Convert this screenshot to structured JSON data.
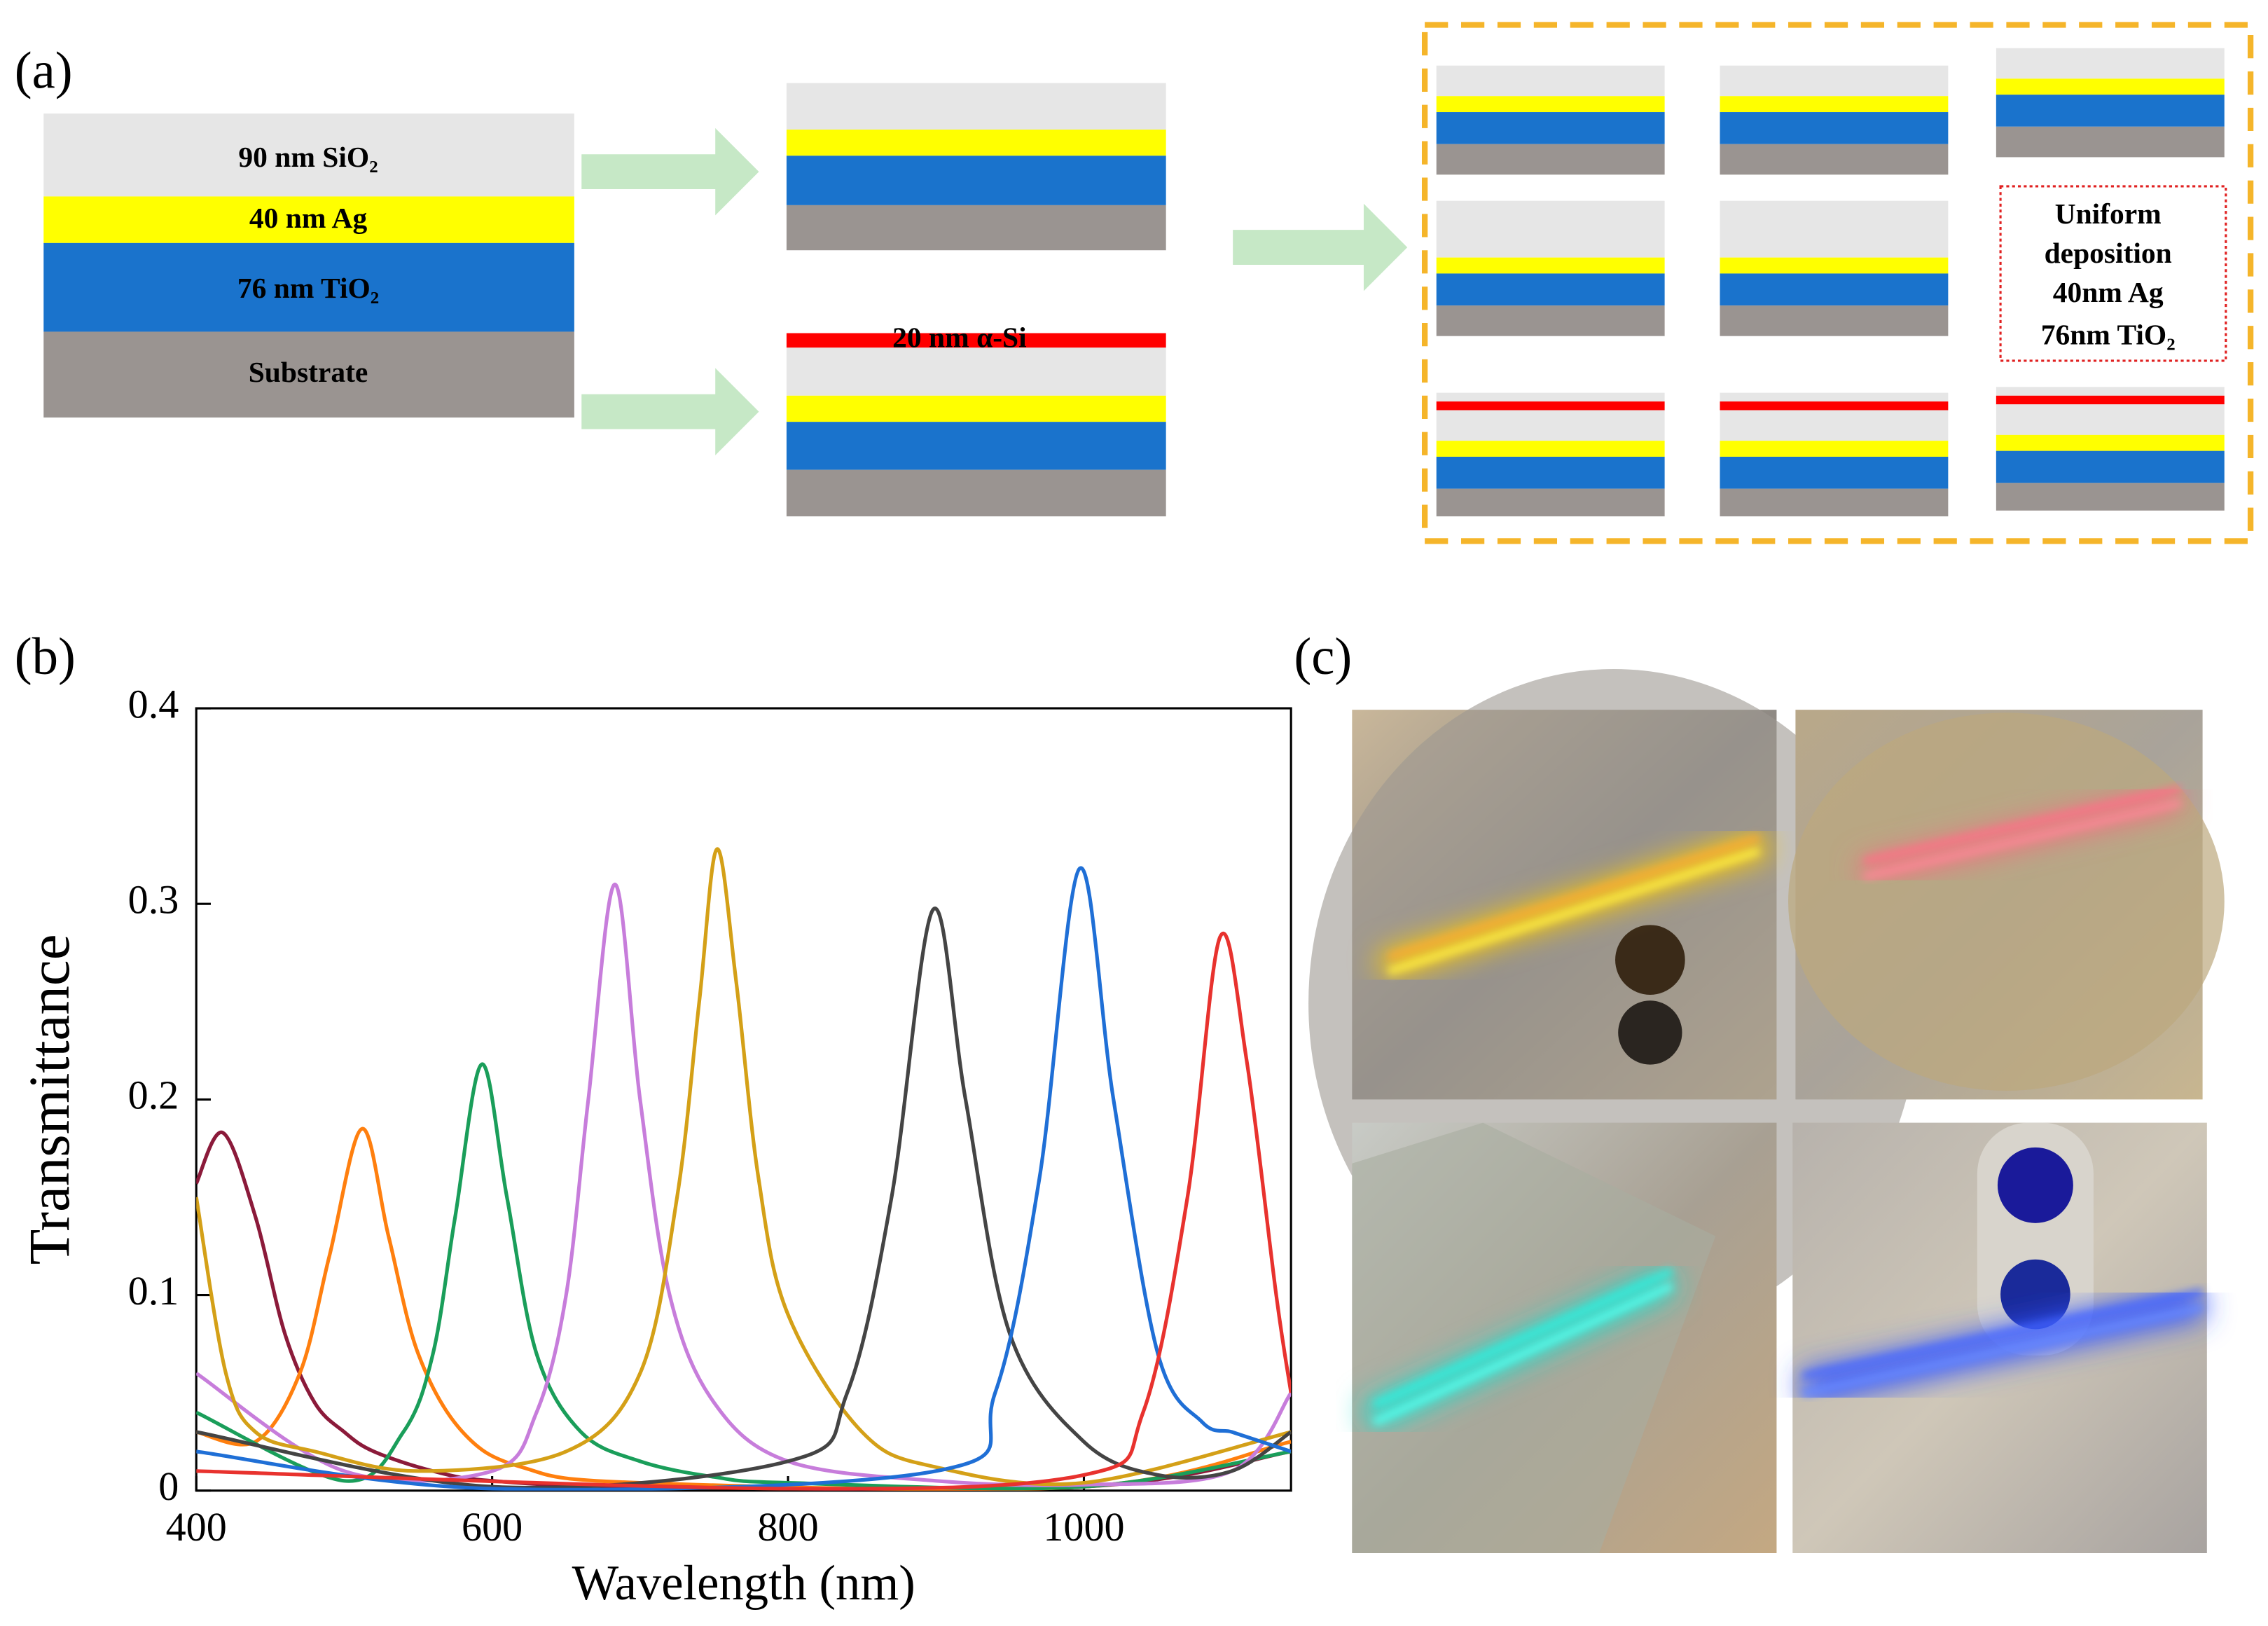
{
  "panel_a": {
    "label": "(a)",
    "layers": [
      "90 nm SiO₂",
      "40 nm Ag",
      "76 nm TiO₂",
      "Substrate"
    ],
    "top_layer": "20 nm α-Si",
    "note": [
      "Uniform",
      "deposition",
      "40nm Ag",
      "76nm TiO₂"
    ]
  },
  "panel_b_label": "(b)",
  "panel_c_label": "(c)",
  "chart_data": {
    "type": "line",
    "x_label": "Wavelength (nm)",
    "y_label": "Transmittance",
    "xlim": [
      400,
      1140
    ],
    "ylim": [
      0,
      0.4
    ],
    "xticks": [
      400,
      600,
      800,
      1000
    ],
    "yticks": [
      0,
      0.1,
      0.2,
      0.3,
      0.4
    ],
    "series": [
      {
        "color": "#8b1a3a",
        "x": [
          400,
          418,
          440,
          460,
          480,
          500,
          520,
          560,
          600,
          700,
          1000,
          1140
        ],
        "values": [
          0.157,
          0.183,
          0.14,
          0.08,
          0.045,
          0.03,
          0.02,
          0.01,
          0.005,
          0.002,
          0.002,
          0.02
        ]
      },
      {
        "color": "#ff7f0e",
        "x": [
          400,
          440,
          470,
          490,
          512,
          530,
          550,
          580,
          620,
          700,
          1000,
          1140
        ],
        "values": [
          0.03,
          0.025,
          0.06,
          0.12,
          0.185,
          0.13,
          0.07,
          0.03,
          0.012,
          0.004,
          0.002,
          0.025
        ]
      },
      {
        "color": "#1a9e5a",
        "x": [
          400,
          500,
          540,
          560,
          575,
          593,
          610,
          630,
          660,
          700,
          750,
          800,
          1000,
          1140
        ],
        "values": [
          0.04,
          0.005,
          0.03,
          0.07,
          0.14,
          0.218,
          0.15,
          0.07,
          0.03,
          0.015,
          0.007,
          0.004,
          0.002,
          0.02
        ]
      },
      {
        "color": "#c77ddb",
        "x": [
          400,
          500,
          600,
          630,
          650,
          665,
          683,
          700,
          720,
          750,
          800,
          900,
          1000,
          1100,
          1140
        ],
        "values": [
          0.06,
          0.01,
          0.01,
          0.04,
          0.1,
          0.2,
          0.31,
          0.2,
          0.1,
          0.045,
          0.015,
          0.005,
          0.003,
          0.01,
          0.05
        ]
      },
      {
        "color": "#d4a017",
        "x": [
          400,
          420,
          440,
          480,
          550,
          650,
          700,
          725,
          740,
          752,
          765,
          780,
          800,
          850,
          900,
          1000,
          1140
        ],
        "values": [
          0.15,
          0.06,
          0.03,
          0.02,
          0.01,
          0.02,
          0.06,
          0.15,
          0.25,
          0.328,
          0.26,
          0.16,
          0.09,
          0.03,
          0.012,
          0.004,
          0.03
        ]
      },
      {
        "color": "#444444",
        "x": [
          400,
          600,
          800,
          840,
          870,
          898,
          920,
          950,
          1000,
          1050,
          1100,
          1140
        ],
        "values": [
          0.03,
          0.002,
          0.015,
          0.05,
          0.15,
          0.297,
          0.2,
          0.08,
          0.025,
          0.008,
          0.01,
          0.03
        ]
      },
      {
        "color": "#1f6fd6",
        "x": [
          400,
          600,
          900,
          940,
          970,
          997,
          1020,
          1050,
          1080,
          1100,
          1120,
          1140
        ],
        "values": [
          0.02,
          0.001,
          0.01,
          0.05,
          0.16,
          0.318,
          0.2,
          0.07,
          0.035,
          0.03,
          0.025,
          0.02
        ]
      },
      {
        "color": "#e8322e",
        "x": [
          400,
          800,
          1000,
          1040,
          1070,
          1092,
          1110,
          1130,
          1140
        ],
        "values": [
          0.01,
          0.001,
          0.008,
          0.04,
          0.15,
          0.283,
          0.22,
          0.1,
          0.05
        ]
      }
    ]
  }
}
